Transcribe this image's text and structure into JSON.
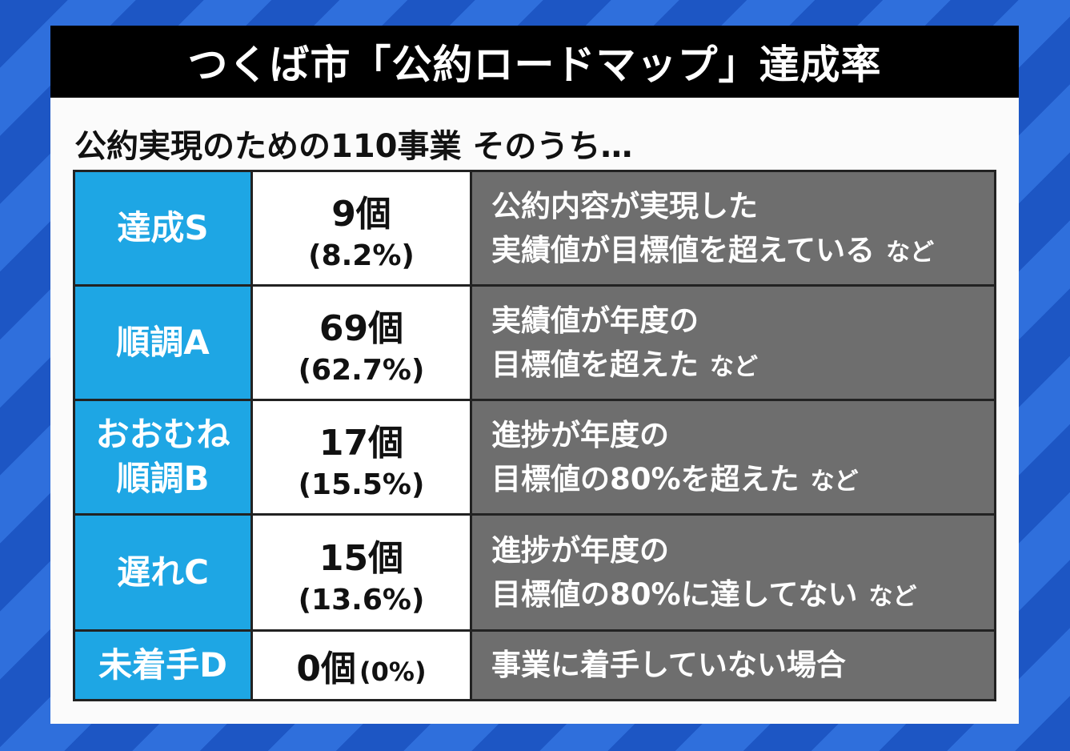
{
  "title": "つくば市「公約ロードマップ」達成率",
  "subtitle": "公約実現のための110事業 そのうち…",
  "rows": [
    {
      "grade_lines": [
        "達成S"
      ],
      "count": "9個",
      "percent": "(8.2%)",
      "desc_lines": [
        "公約内容が実現した",
        "実績値が目標値を超えている"
      ],
      "suffix": "など"
    },
    {
      "grade_lines": [
        "順調A"
      ],
      "count": "69個",
      "percent": "(62.7%)",
      "desc_lines": [
        "実績値が年度の",
        "目標値を超えた"
      ],
      "suffix": "など"
    },
    {
      "grade_lines": [
        "おおむね",
        "順調B"
      ],
      "count": "17個",
      "percent": "(15.5%)",
      "desc_lines": [
        "進捗が年度の",
        "目標値の80%を超えた"
      ],
      "suffix": "など"
    },
    {
      "grade_lines": [
        "遅れC"
      ],
      "count": "15個",
      "percent": "(13.6%)",
      "desc_lines": [
        "進捗が年度の",
        "目標値の80%に達してない"
      ],
      "suffix": "など"
    },
    {
      "grade_lines": [
        "未着手D"
      ],
      "count": "0個",
      "percent": "(0%)",
      "desc_lines": [
        "事業に着手していない場合"
      ],
      "suffix": ""
    }
  ]
}
